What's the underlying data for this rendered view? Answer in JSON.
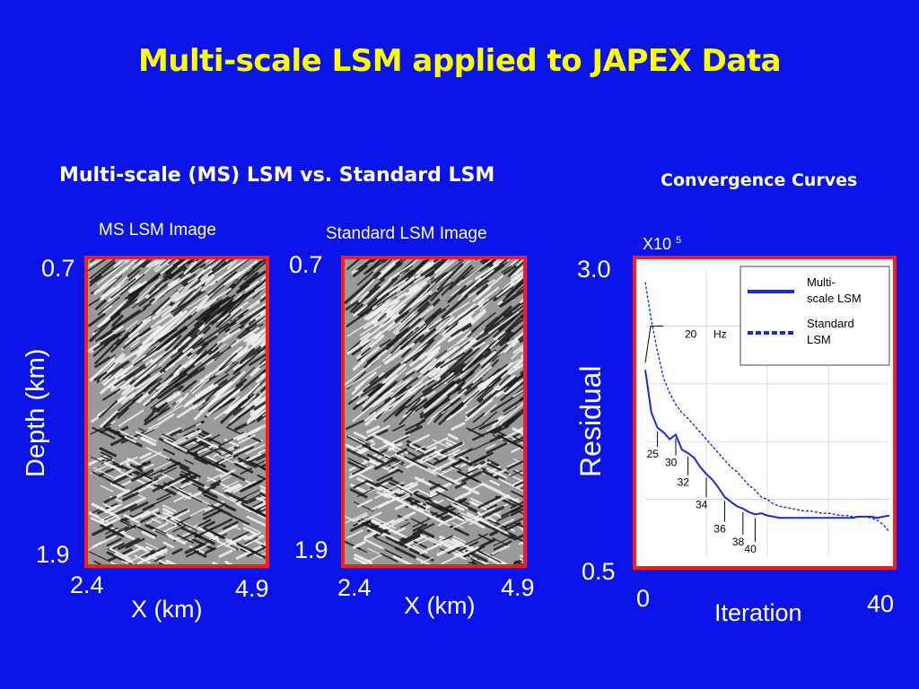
{
  "slide": {
    "title": "Multi-scale LSM applied to JAPEX Data",
    "left_heading": "Multi-scale (MS) LSM vs. Standard LSM",
    "right_heading": "Convergence Curves"
  },
  "colors": {
    "background": "#0a14e6",
    "title": "#ffff00",
    "frame": "#ff1a1a",
    "curve": "#1a2ad6"
  },
  "images": [
    {
      "label": "MS LSM Image",
      "depth_top": "0.7",
      "depth_bottom": "1.9",
      "x_left": "2.4",
      "x_right": "4.9",
      "xlabel": "X (km)"
    },
    {
      "label": "Standard LSM Image",
      "depth_top": "0.7",
      "depth_bottom": "1.9",
      "x_left": "2.4",
      "x_right": "4.9",
      "xlabel": "X (km)"
    }
  ],
  "depth_axis_label": "Depth (km)",
  "chart_data": {
    "type": "line",
    "title": "Convergence Curves",
    "xlabel": "Iteration",
    "ylabel": "Residual",
    "y_multiplier": "X10",
    "y_exponent": "5",
    "xlim": [
      0,
      40
    ],
    "ylim": [
      0.5,
      3.0
    ],
    "x_tick_labels": [
      "0",
      "40"
    ],
    "y_tick_labels": [
      "3.0",
      "0.5"
    ],
    "grid": true,
    "legend": "top-right",
    "series": [
      {
        "name": "Multi-scale LSM",
        "style": "solid",
        "x": [
          0,
          1,
          2,
          3,
          4,
          5,
          6,
          7,
          8,
          9,
          10,
          11,
          12,
          13,
          14,
          15,
          16,
          17,
          18,
          19,
          20,
          21,
          22,
          23,
          24,
          25,
          26,
          27,
          28,
          29,
          30,
          31,
          32,
          33,
          34,
          35,
          36,
          37,
          38,
          39,
          40
        ],
        "y": [
          2.12,
          1.75,
          1.62,
          1.58,
          1.52,
          1.56,
          1.43,
          1.4,
          1.36,
          1.28,
          1.22,
          1.17,
          1.1,
          1.02,
          0.98,
          0.94,
          0.92,
          0.89,
          0.87,
          0.88,
          0.86,
          0.85,
          0.84,
          0.84,
          0.84,
          0.84,
          0.84,
          0.84,
          0.84,
          0.84,
          0.84,
          0.84,
          0.84,
          0.84,
          0.84,
          0.85,
          0.85,
          0.85,
          0.84,
          0.85,
          0.86
        ]
      },
      {
        "name": "Standard LSM",
        "style": "dashed",
        "x": [
          0,
          1,
          2,
          3,
          4,
          5,
          6,
          7,
          8,
          9,
          10,
          11,
          12,
          13,
          14,
          15,
          16,
          17,
          18,
          19,
          20,
          21,
          22,
          23,
          24,
          25,
          26,
          27,
          28,
          29,
          30,
          31,
          32,
          33,
          34,
          35,
          36,
          37,
          38,
          39,
          40
        ],
        "y": [
          2.88,
          2.55,
          2.28,
          2.05,
          1.92,
          1.82,
          1.75,
          1.7,
          1.64,
          1.58,
          1.52,
          1.46,
          1.4,
          1.34,
          1.28,
          1.24,
          1.18,
          1.12,
          1.08,
          1.02,
          1.0,
          0.96,
          0.94,
          0.93,
          0.92,
          0.91,
          0.9,
          0.9,
          0.89,
          0.88,
          0.88,
          0.87,
          0.86,
          0.86,
          0.85,
          0.85,
          0.85,
          0.84,
          0.82,
          0.78,
          0.72
        ]
      }
    ],
    "annotations": [
      {
        "text": "20",
        "text2": "Hz",
        "x": 0
      },
      {
        "text": "25",
        "x": 2
      },
      {
        "text": "30",
        "x": 5
      },
      {
        "text": "32",
        "x": 7
      },
      {
        "text": "34",
        "x": 10
      },
      {
        "text": "36",
        "x": 13
      },
      {
        "text": "38",
        "x": 16
      },
      {
        "text": "40",
        "x": 18
      }
    ],
    "legend_labels": {
      "ms_line1": "Multi-",
      "ms_line2": "scale LSM",
      "std_line1": "Standard",
      "std_line2": "LSM"
    }
  }
}
